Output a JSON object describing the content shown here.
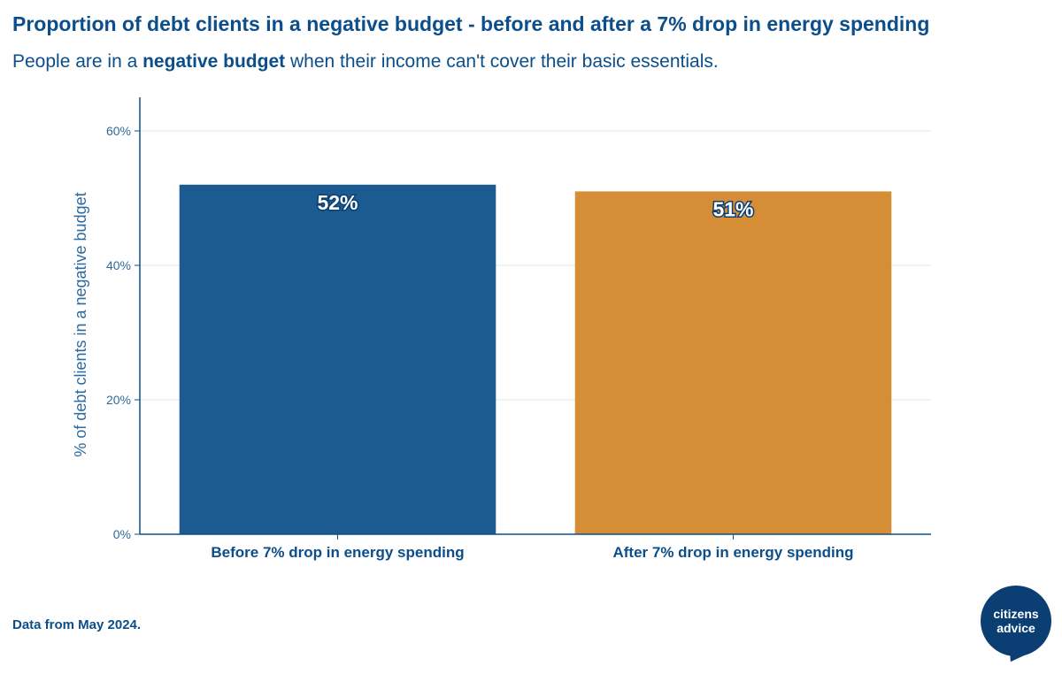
{
  "chart_data": {
    "type": "bar",
    "title": "Proportion of debt clients in a negative budget - before and after a 7% drop in energy spending",
    "subtitle": {
      "before": "People are in a ",
      "bold": "negative budget",
      "after": " when their income can't cover their basic essentials."
    },
    "categories": [
      "Before 7% drop in energy spending",
      "After 7% drop in energy spending"
    ],
    "values": [
      52,
      51
    ],
    "data_labels": [
      "52%",
      "51%"
    ],
    "colors": [
      "#1b5b91",
      "#d58d36"
    ],
    "xlabel": "",
    "ylabel": "% of debt clients in a negative budget",
    "ylim": [
      0,
      65
    ],
    "yticks": [
      0,
      20,
      40,
      60
    ],
    "ytick_labels": [
      "0%",
      "20%",
      "40%",
      "60%"
    ],
    "grid": true,
    "legend": "none"
  },
  "footer": {
    "source": "Data from May 2024."
  },
  "logo": {
    "line1": "citizens",
    "line2": "advice"
  }
}
